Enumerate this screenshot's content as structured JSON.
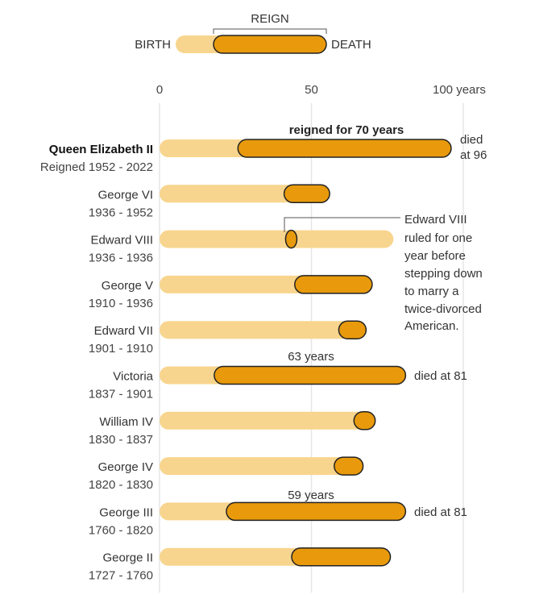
{
  "chart_data": {
    "type": "bar",
    "subtype": "range-lifespan",
    "x_unit_label": "years",
    "xlim": [
      0,
      100
    ],
    "x_ticks": [
      0,
      50,
      100
    ],
    "x_tick_labels": [
      "0",
      "50",
      "100 years"
    ],
    "grid": true,
    "colors": {
      "life": "#f8d58e",
      "reign": "#e89a0c",
      "outline": "#222222",
      "grid": "#e6e6e6"
    },
    "legend": {
      "reign_label": "REIGN",
      "birth_label": "BIRTH",
      "death_label": "DEATH",
      "placement": "top"
    },
    "series": [
      {
        "name": "Queen Elizabeth II",
        "period": "Reigned 1952 - 2022",
        "highlight": true,
        "age_at_death": 96,
        "reign_start_age": 25.8,
        "reign_end_age": 96
      },
      {
        "name": "George VI",
        "period": "1936 - 1952",
        "age_at_death": 56,
        "reign_start_age": 41,
        "reign_end_age": 56
      },
      {
        "name": "Edward VIII",
        "period": "1936 - 1936",
        "age_at_death": 77,
        "reign_start_age": 41.5,
        "reign_end_age": 42.5
      },
      {
        "name": "George V",
        "period": "1910 - 1936",
        "age_at_death": 70,
        "reign_start_age": 44.5,
        "reign_end_age": 70
      },
      {
        "name": "Edward VII",
        "period": "1901 - 1910",
        "age_at_death": 68,
        "reign_start_age": 59,
        "reign_end_age": 68
      },
      {
        "name": "Victoria",
        "period": "1837 - 1901",
        "age_at_death": 81,
        "reign_start_age": 18,
        "reign_end_age": 81
      },
      {
        "name": "William IV",
        "period": "1830 - 1837",
        "age_at_death": 71,
        "reign_start_age": 64,
        "reign_end_age": 71
      },
      {
        "name": "George IV",
        "period": "1820 - 1830",
        "age_at_death": 67,
        "reign_start_age": 57.5,
        "reign_end_age": 67
      },
      {
        "name": "George III",
        "period": "1760 - 1820",
        "age_at_death": 81,
        "reign_start_age": 22,
        "reign_end_age": 81
      },
      {
        "name": "George II",
        "period": "1727 - 1760",
        "age_at_death": 76,
        "reign_start_age": 43.5,
        "reign_end_age": 76
      }
    ],
    "annotations": {
      "elizabeth_reign": "reigned for 70 years",
      "elizabeth_died_line1": "died",
      "elizabeth_died_line2": "at 96",
      "victoria_years": "63 years",
      "victoria_died": "died at 81",
      "george3_years": "59 years",
      "george3_died": "died at 81",
      "edward8_note": [
        "Edward VIII",
        "ruled for one",
        "year before",
        "stepping down",
        "to marry a",
        "twice-divorced",
        "American."
      ]
    }
  }
}
